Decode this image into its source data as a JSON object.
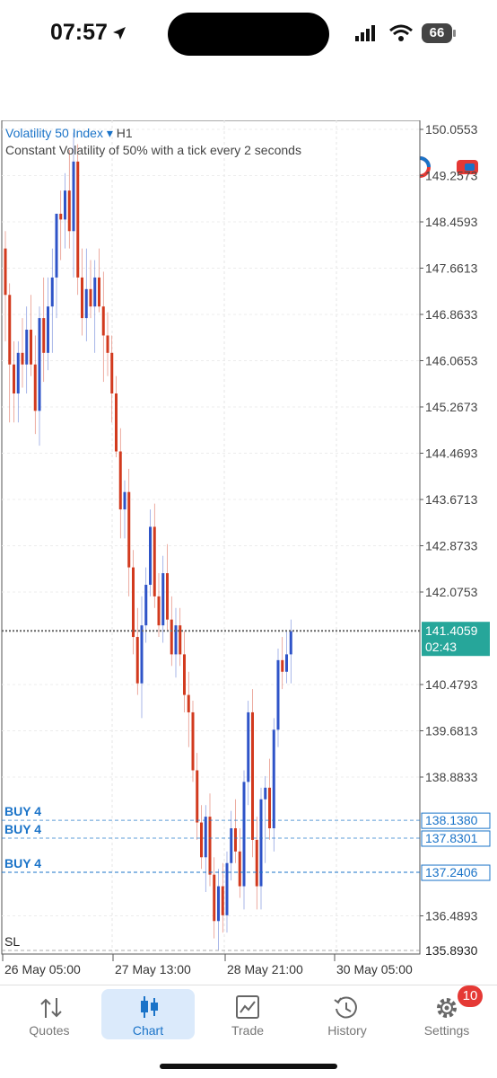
{
  "status_bar": {
    "time": "07:57",
    "battery": "66"
  },
  "toolbar": {
    "timeframe": "H1"
  },
  "chart_info": {
    "symbol": "Volatility 50 Index",
    "dropdown_arrow": "▾",
    "timeframe": "H1",
    "description": "Constant Volatility of 50% with a tick every 2 seconds"
  },
  "price_axis": [
    "150.0553",
    "149.2573",
    "148.4593",
    "147.6613",
    "146.8633",
    "146.0653",
    "145.2673",
    "144.4693",
    "143.6713",
    "142.8733",
    "142.0753",
    "140.4793",
    "139.6813",
    "138.8833",
    "136.4893"
  ],
  "current_price": {
    "value": "141.4059",
    "countdown": "02:43"
  },
  "levels": [
    {
      "label": "BUY 4",
      "price": "138.1380"
    },
    {
      "label": "BUY 4",
      "price": "137.8301"
    },
    {
      "label": "BUY 4",
      "price": "137.2406"
    },
    {
      "label": "SL",
      "price": "135.8930"
    }
  ],
  "time_axis": [
    "26 May 05:00",
    "27 May 13:00",
    "28 May 21:00",
    "30 May 05:00"
  ],
  "nav": [
    {
      "label": "Quotes",
      "icon": "arrows-updown-icon"
    },
    {
      "label": "Chart",
      "icon": "candlestick-icon"
    },
    {
      "label": "Trade",
      "icon": "trade-chart-icon"
    },
    {
      "label": "History",
      "icon": "history-icon"
    },
    {
      "label": "Settings",
      "icon": "gear-icon"
    }
  ],
  "settings_badge": "10",
  "colors": {
    "bull": "#2f54c8",
    "bear": "#d23a1e",
    "accent": "#1a73c8",
    "price_tag": "#26a69a"
  },
  "chart_data": {
    "type": "candlestick",
    "title": "Volatility 50 Index",
    "subtitle": "Constant Volatility of 50% with a tick every 2 seconds",
    "timeframe": "H1",
    "ylim": [
      135.6,
      150.3
    ],
    "x_ticks": [
      "26 May 05:00",
      "27 May 13:00",
      "28 May 21:00",
      "30 May 05:00"
    ],
    "candles": [
      [
        148.0,
        148.3,
        146.4,
        147.2
      ],
      [
        147.2,
        147.4,
        145.0,
        146.0
      ],
      [
        146.0,
        146.4,
        145.0,
        145.5
      ],
      [
        145.5,
        146.4,
        145.0,
        146.2
      ],
      [
        146.2,
        146.8,
        145.6,
        146.0
      ],
      [
        146.0,
        147.0,
        145.5,
        146.6
      ],
      [
        146.6,
        147.2,
        145.8,
        146.0
      ],
      [
        146.0,
        146.5,
        144.8,
        145.2
      ],
      [
        145.2,
        147.0,
        144.6,
        146.8
      ],
      [
        146.8,
        147.5,
        145.7,
        146.2
      ],
      [
        146.2,
        147.5,
        145.9,
        147.0
      ],
      [
        147.0,
        148.0,
        146.2,
        147.5
      ],
      [
        147.5,
        148.6,
        146.8,
        148.6
      ],
      [
        148.6,
        149.0,
        147.8,
        148.5
      ],
      [
        148.5,
        149.3,
        148.0,
        149.0
      ],
      [
        149.0,
        149.7,
        148.0,
        148.3
      ],
      [
        148.3,
        150.0,
        147.5,
        149.5
      ],
      [
        149.5,
        149.8,
        147.2,
        147.5
      ],
      [
        147.5,
        148.0,
        146.5,
        146.8
      ],
      [
        146.8,
        148.0,
        146.4,
        147.3
      ],
      [
        147.3,
        147.8,
        146.8,
        147.0
      ],
      [
        147.0,
        147.8,
        146.2,
        147.5
      ],
      [
        147.5,
        148.0,
        146.9,
        147.0
      ],
      [
        147.0,
        147.6,
        145.7,
        146.5
      ],
      [
        146.5,
        146.9,
        145.8,
        146.2
      ],
      [
        146.2,
        146.5,
        145.0,
        145.5
      ],
      [
        145.5,
        145.8,
        144.4,
        144.5
      ],
      [
        144.5,
        144.9,
        143.0,
        143.5
      ],
      [
        143.5,
        144.0,
        143.0,
        143.8
      ],
      [
        143.8,
        144.2,
        142.0,
        142.5
      ],
      [
        142.5,
        142.8,
        141.0,
        141.3
      ],
      [
        141.3,
        141.8,
        140.3,
        140.5
      ],
      [
        140.5,
        142.0,
        139.9,
        141.5
      ],
      [
        141.5,
        142.5,
        141.2,
        142.2
      ],
      [
        142.2,
        143.5,
        142.0,
        143.2
      ],
      [
        143.2,
        143.6,
        141.8,
        142.0
      ],
      [
        142.0,
        142.4,
        141.3,
        141.5
      ],
      [
        141.5,
        142.7,
        141.2,
        142.4
      ],
      [
        142.4,
        142.9,
        141.4,
        141.6
      ],
      [
        141.6,
        142.0,
        140.8,
        141.0
      ],
      [
        141.0,
        141.8,
        140.6,
        141.5
      ],
      [
        141.5,
        141.8,
        140.8,
        141.0
      ],
      [
        141.0,
        141.4,
        140.0,
        140.3
      ],
      [
        140.3,
        140.7,
        139.4,
        140.0
      ],
      [
        140.0,
        140.2,
        138.8,
        139.0
      ],
      [
        139.0,
        139.3,
        137.8,
        138.1
      ],
      [
        138.1,
        138.4,
        137.3,
        137.5
      ],
      [
        137.5,
        138.4,
        136.9,
        138.2
      ],
      [
        138.2,
        138.6,
        137.0,
        137.2
      ],
      [
        137.2,
        137.5,
        136.1,
        136.4
      ],
      [
        136.4,
        137.3,
        135.9,
        137.0
      ],
      [
        137.0,
        137.4,
        136.2,
        136.5
      ],
      [
        136.5,
        137.6,
        136.2,
        137.4
      ],
      [
        137.4,
        138.3,
        137.1,
        138.0
      ],
      [
        138.0,
        138.5,
        137.4,
        137.6
      ],
      [
        137.6,
        138.0,
        136.8,
        137.0
      ],
      [
        137.0,
        139.0,
        136.6,
        138.8
      ],
      [
        138.8,
        140.2,
        138.4,
        140.0
      ],
      [
        140.0,
        140.4,
        137.5,
        137.8
      ],
      [
        137.8,
        138.2,
        136.6,
        137.0
      ],
      [
        137.0,
        138.7,
        136.6,
        138.5
      ],
      [
        138.5,
        138.9,
        137.4,
        138.7
      ],
      [
        138.7,
        139.2,
        137.8,
        138.0
      ],
      [
        138.0,
        139.9,
        137.6,
        139.7
      ],
      [
        139.7,
        141.1,
        139.4,
        140.9
      ],
      [
        140.9,
        141.3,
        140.4,
        140.7
      ],
      [
        140.7,
        141.4,
        140.5,
        141.0
      ],
      [
        141.0,
        141.6,
        140.5,
        141.4
      ]
    ]
  }
}
